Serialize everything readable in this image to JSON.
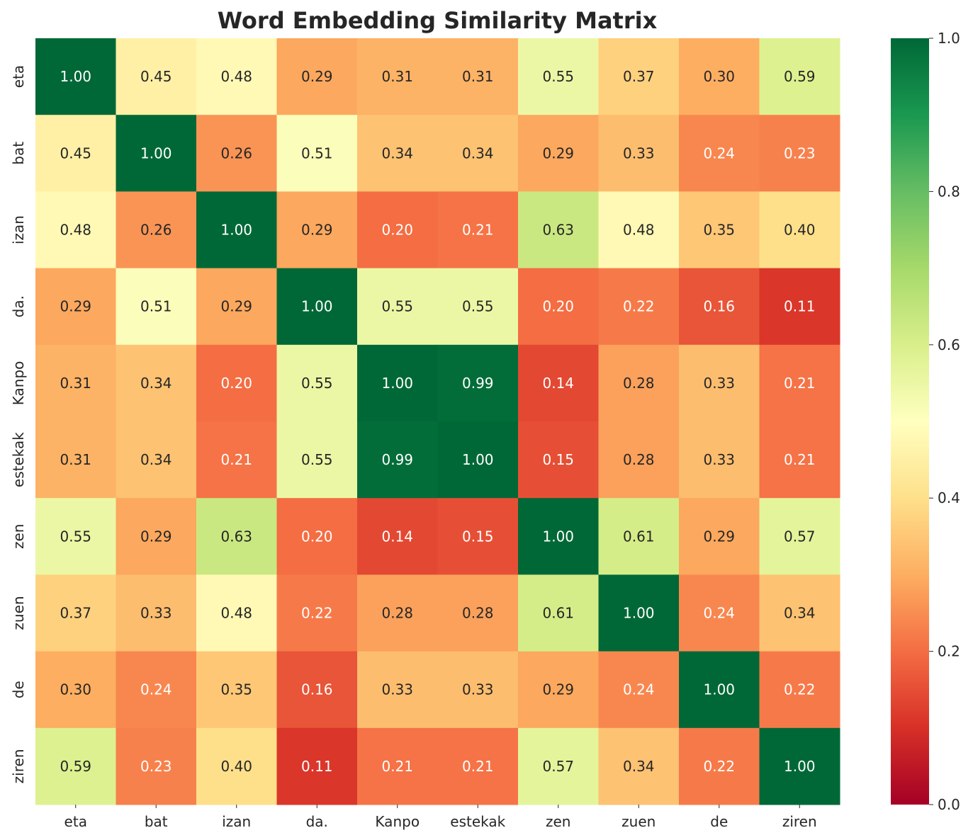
{
  "chart_data": {
    "type": "heatmap",
    "title": "Word Embedding Similarity Matrix",
    "xlabel": "",
    "ylabel": "",
    "x_labels": [
      "eta",
      "bat",
      "izan",
      "da.",
      "Kanpo",
      "estekak",
      "zen",
      "zuen",
      "de",
      "ziren"
    ],
    "y_labels": [
      "eta",
      "bat",
      "izan",
      "da.",
      "Kanpo",
      "estekak",
      "zen",
      "zuen",
      "de",
      "ziren"
    ],
    "values": [
      [
        1.0,
        0.45,
        0.48,
        0.29,
        0.31,
        0.31,
        0.55,
        0.37,
        0.3,
        0.59
      ],
      [
        0.45,
        1.0,
        0.26,
        0.51,
        0.34,
        0.34,
        0.29,
        0.33,
        0.24,
        0.23
      ],
      [
        0.48,
        0.26,
        1.0,
        0.29,
        0.2,
        0.21,
        0.63,
        0.48,
        0.35,
        0.4
      ],
      [
        0.29,
        0.51,
        0.29,
        1.0,
        0.55,
        0.55,
        0.2,
        0.22,
        0.16,
        0.11
      ],
      [
        0.31,
        0.34,
        0.2,
        0.55,
        1.0,
        0.99,
        0.14,
        0.28,
        0.33,
        0.21
      ],
      [
        0.31,
        0.34,
        0.21,
        0.55,
        0.99,
        1.0,
        0.15,
        0.28,
        0.33,
        0.21
      ],
      [
        0.55,
        0.29,
        0.63,
        0.2,
        0.14,
        0.15,
        1.0,
        0.61,
        0.29,
        0.57
      ],
      [
        0.37,
        0.33,
        0.48,
        0.22,
        0.28,
        0.28,
        0.61,
        1.0,
        0.24,
        0.34
      ],
      [
        0.3,
        0.24,
        0.35,
        0.16,
        0.33,
        0.33,
        0.29,
        0.24,
        1.0,
        0.22
      ],
      [
        0.59,
        0.23,
        0.4,
        0.11,
        0.21,
        0.21,
        0.57,
        0.34,
        0.22,
        1.0
      ]
    ],
    "value_format": "0.00",
    "colormap": "RdYlGn",
    "vmin": 0.0,
    "vmax": 1.0,
    "colorbar_ticks": [
      "0.0",
      "0.2",
      "0.4",
      "0.6",
      "0.8",
      "1.0"
    ],
    "colorbar_tick_values": [
      0.0,
      0.2,
      0.4,
      0.6,
      0.8,
      1.0
    ],
    "grid": false
  }
}
